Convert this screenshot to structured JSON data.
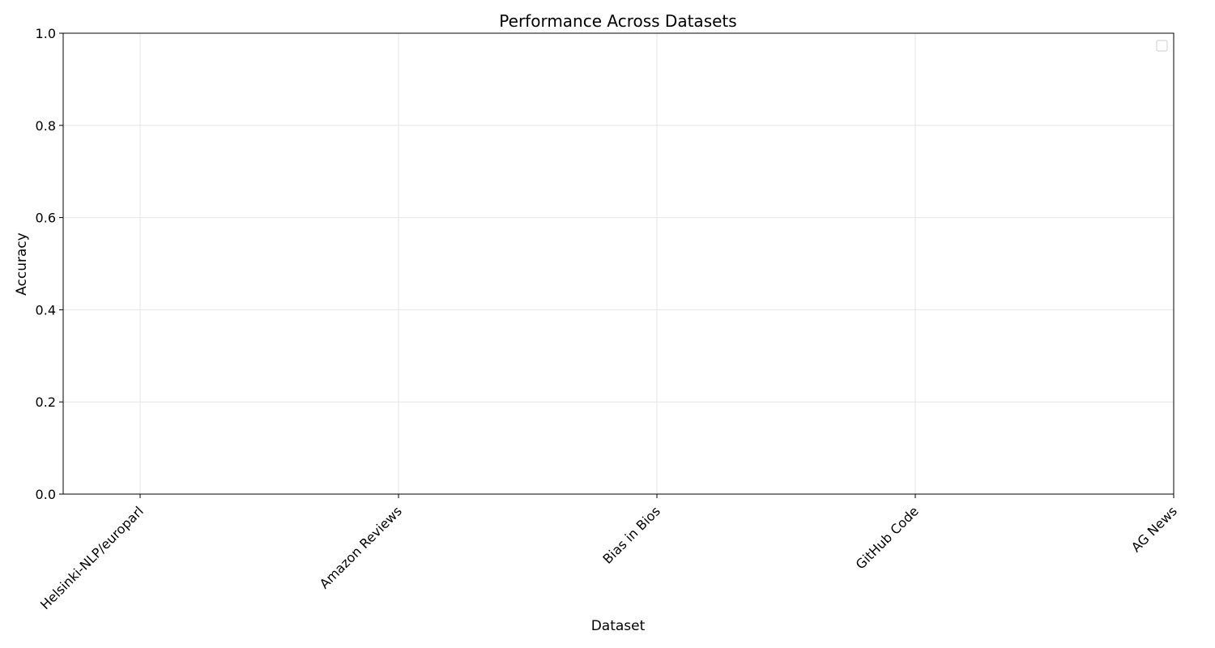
{
  "chart_data": {
    "type": "line",
    "title": "Performance Across Datasets",
    "xlabel": "Dataset",
    "ylabel": "Accuracy",
    "categories": [
      "Helsinki-NLP/europarl",
      "Amazon Reviews",
      "Bias in Bios",
      "GitHub Code",
      "AG News"
    ],
    "ylim": [
      0,
      1
    ],
    "yticks": [
      "0.0",
      "0.2",
      "0.4",
      "0.6",
      "0.8",
      "1.0"
    ],
    "grid": true,
    "legend": "top-right",
    "series": []
  }
}
